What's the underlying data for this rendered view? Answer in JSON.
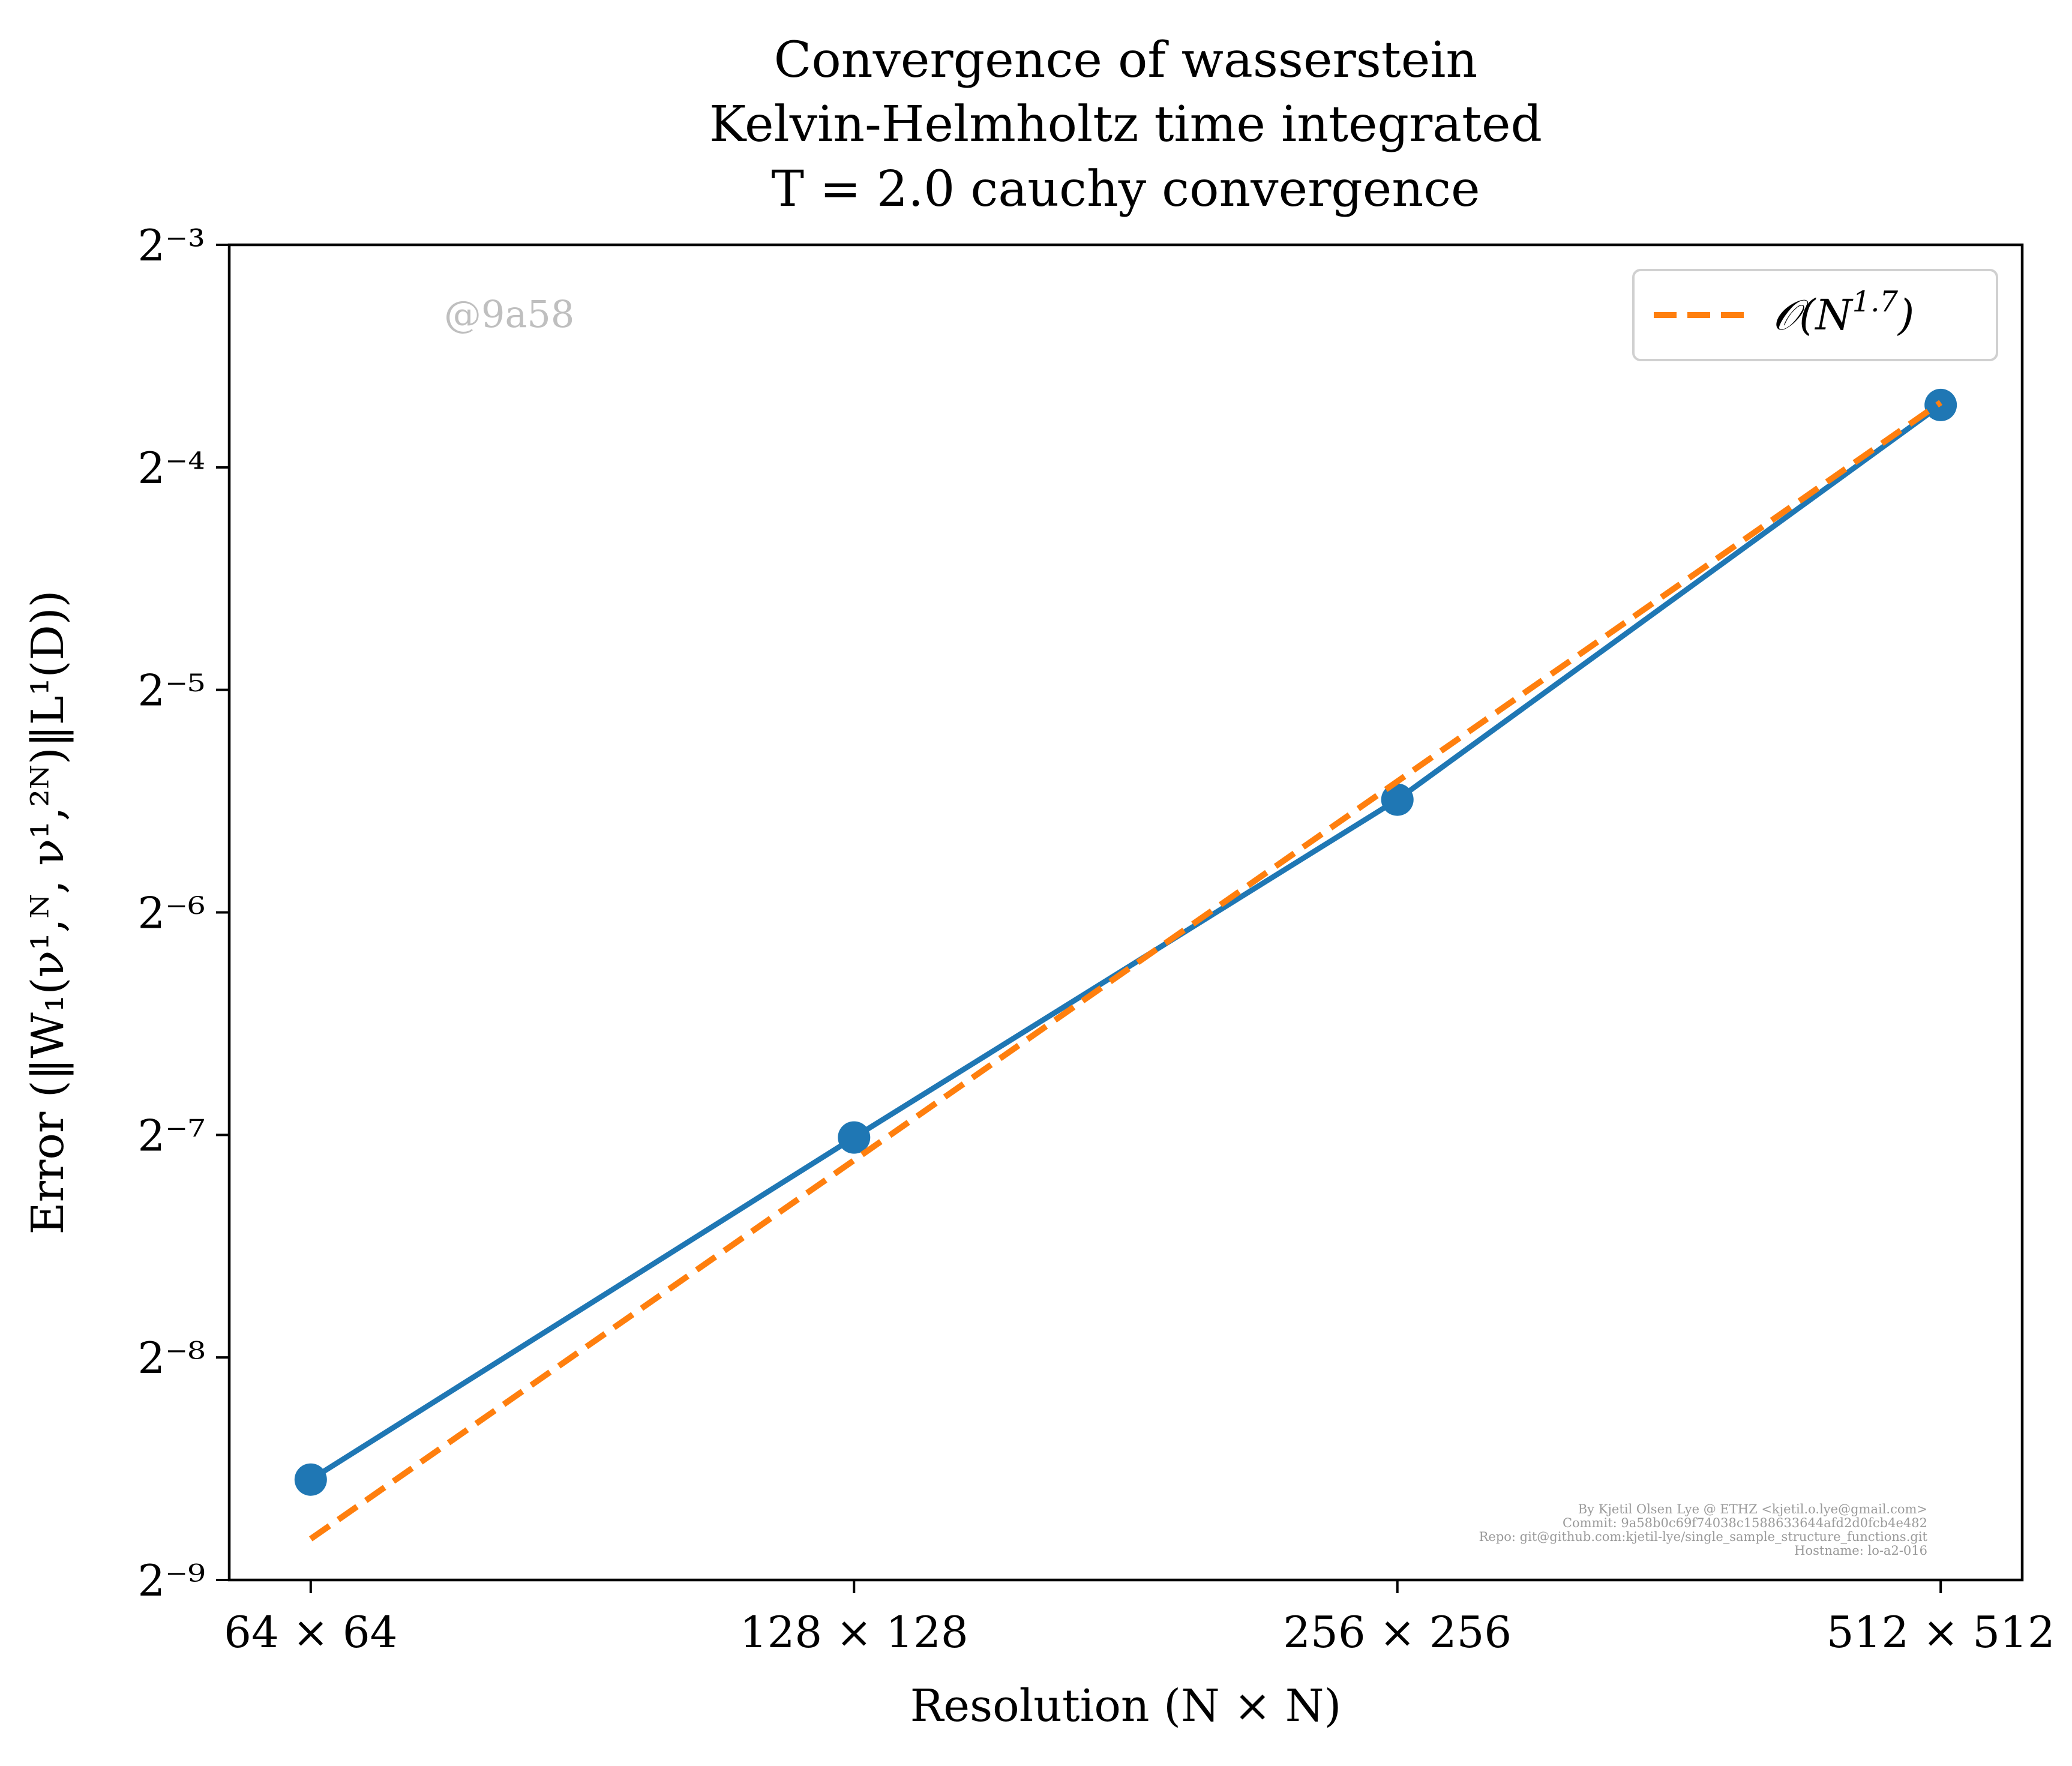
{
  "chart_data": {
    "type": "line",
    "title": [
      "Convergence of wasserstein",
      "Kelvin-Helmholtz time integrated",
      "T = 2.0 cauchy convergence"
    ],
    "xlabel": "Resolution (N × N)",
    "ylabel": "Error (‖W₁(ν¹,ᴺ, ν¹,²ᴺ)‖L¹(D))",
    "categories": [
      "64 × 64",
      "128 × 128",
      "256 × 256",
      "512 × 512"
    ],
    "x": [
      64,
      128,
      256,
      512
    ],
    "xscale": "log2",
    "yscale": "log2",
    "ylim_exponent": [
      -9,
      -3
    ],
    "ytick_labels": [
      "2⁻³",
      "2⁻⁴",
      "2⁻⁵",
      "2⁻⁶",
      "2⁻⁷",
      "2⁻⁸",
      "2⁻⁹"
    ],
    "ytick_exponents": [
      -3,
      -4,
      -5,
      -6,
      -7,
      -8,
      -9
    ],
    "series": [
      {
        "values": [
          0.00267,
          0.00775,
          0.0222,
          0.0759
        ],
        "color": "#1f77b4",
        "style": "solid",
        "markers": true
      },
      {
        "name": "𝒪(N^1.7)",
        "values": [
          0.00222,
          0.00722,
          0.0235,
          0.0765
        ],
        "color": "#ff7f0e",
        "style": "dashed",
        "markers": false
      }
    ],
    "legend": {
      "placement": "top-right",
      "label_main": "𝒪(N",
      "label_sup": "1.7",
      "label_end": ")"
    },
    "grid": false,
    "watermark": "@9a58",
    "credits": [
      "By Kjetil Olsen Lye @ ETHZ <kjetil.o.lye@gmail.com>",
      "Commit: 9a58b0c69f74038c1588633644afd2d0fcb4e482",
      "Repo: git@github.com:kjetil-lye/single_sample_structure_functions.git",
      "Hostname: lo-a2-016"
    ]
  }
}
